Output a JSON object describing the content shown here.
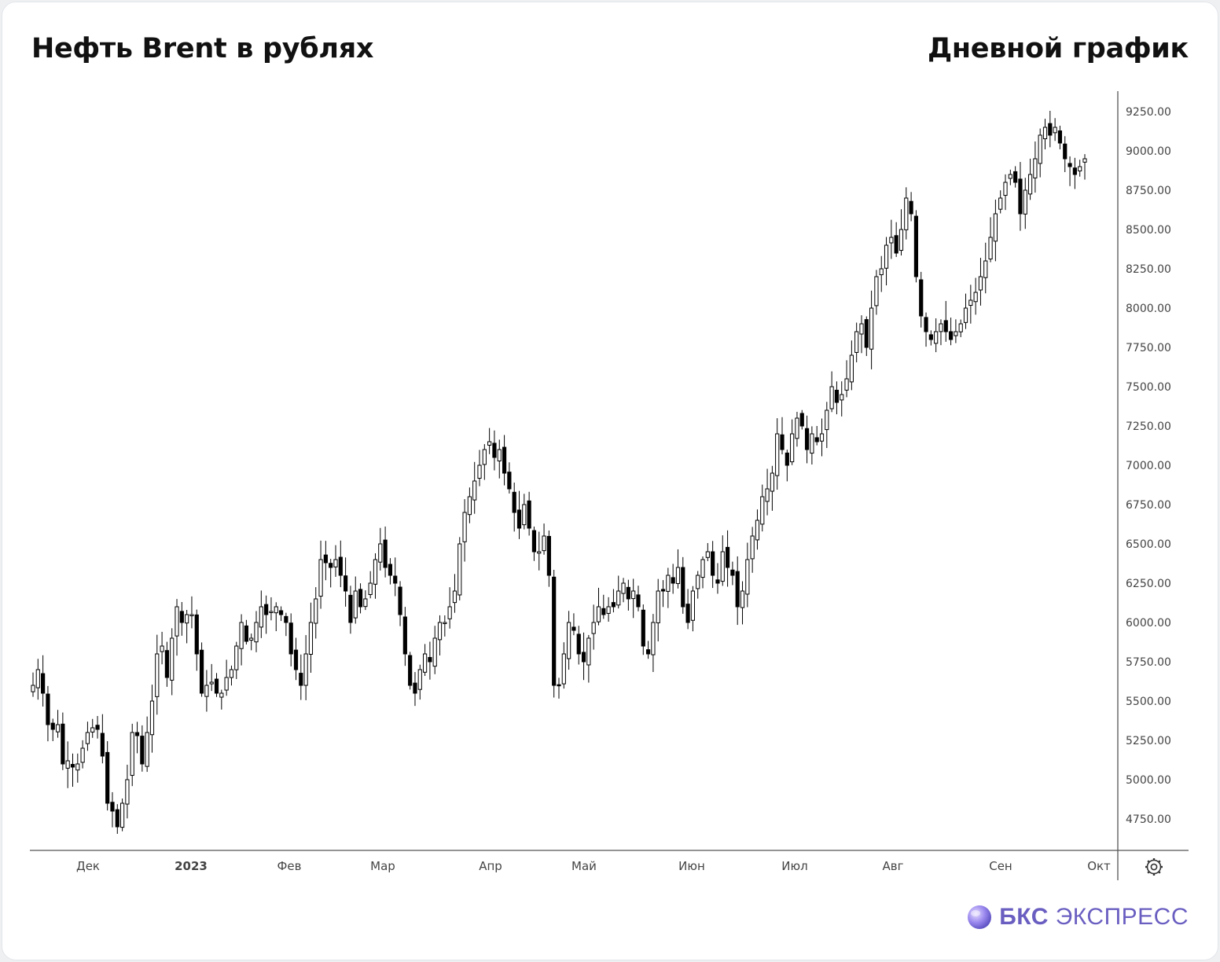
{
  "header": {
    "title": "Нефть Brent в рублях",
    "subtitle": "Дневной график"
  },
  "brand": {
    "name_bold": "БКС",
    "name_rest": " ЭКСПРЕСС",
    "logo_icon": "bks-logo-icon",
    "color": "#6a5fc1"
  },
  "settings_icon": "gear-icon",
  "chart_data": {
    "type": "candlestick",
    "title": "Нефть Brent в рублях",
    "subtitle": "Дневной график",
    "y_axis": {
      "position": "right",
      "min": 4650,
      "max": 9350,
      "ticks": [
        "4750.00",
        "5000.00",
        "5250.00",
        "5500.00",
        "5750.00",
        "6000.00",
        "6250.00",
        "6500.00",
        "6750.00",
        "7000.00",
        "7250.00",
        "7500.00",
        "7750.00",
        "8000.00",
        "8250.00",
        "8500.00",
        "8750.00",
        "9000.00",
        "9250.00"
      ]
    },
    "x_axis": {
      "labels": [
        "Дек",
        "2023",
        "Фев",
        "Мар",
        "Апр",
        "Май",
        "Июн",
        "Июл",
        "Авг",
        "Сен",
        "Окт"
      ]
    },
    "grid": false,
    "candle_colors": {
      "up": "#ffffff",
      "down": "#000000",
      "outline": "#000000"
    },
    "closes": [
      5600,
      5700,
      5550,
      5350,
      5320,
      5350,
      5100,
      5120,
      5080,
      5100,
      5200,
      5300,
      5330,
      5320,
      5150,
      4850,
      4800,
      4700,
      4850,
      5000,
      5300,
      5280,
      5100,
      5300,
      5500,
      5800,
      5850,
      5650,
      5900,
      6100,
      6000,
      6050,
      6050,
      5800,
      5550,
      5600,
      5620,
      5550,
      5550,
      5650,
      5700,
      5850,
      6000,
      5880,
      5900,
      6000,
      6100,
      6050,
      6070,
      6100,
      6050,
      6000,
      5800,
      5700,
      5600,
      5800,
      6000,
      6150,
      6400,
      6380,
      6350,
      6400,
      6300,
      6200,
      6000,
      6200,
      6100,
      6150,
      6250,
      6400,
      6500,
      6350,
      6300,
      6250,
      6050,
      5800,
      5600,
      5550,
      5700,
      5800,
      5750,
      5900,
      6000,
      6000,
      6100,
      6200,
      6500,
      6700,
      6800,
      6900,
      7000,
      7100,
      7150,
      7050,
      7100,
      6950,
      6850,
      6700,
      6600,
      6750,
      6600,
      6450,
      6450,
      6550,
      6300,
      5600,
      5600,
      5800,
      6000,
      5950,
      5800,
      5750,
      5900,
      6000,
      6100,
      6050,
      6100,
      6100,
      6200,
      6250,
      6150,
      6200,
      6100,
      5850,
      5800,
      6000,
      6200,
      6200,
      6300,
      6250,
      6350,
      6100,
      6000,
      6200,
      6300,
      6400,
      6450,
      6300,
      6250,
      6450,
      6350,
      6300,
      6100,
      6200,
      6400,
      6550,
      6650,
      6800,
      6850,
      6950,
      7200,
      7100,
      7000,
      7200,
      7300,
      7250,
      7100,
      7200,
      7150,
      7200,
      7350,
      7500,
      7400,
      7450,
      7550,
      7700,
      7850,
      7900,
      7750,
      8000,
      8200,
      8250,
      8400,
      8450,
      8350,
      8500,
      8700,
      8600,
      8200,
      7950,
      7850,
      7800,
      7850,
      7900,
      7850,
      7800,
      7850,
      7900,
      8000,
      8050,
      8100,
      8200,
      8300,
      8450,
      8600,
      8700,
      8800,
      8850,
      8800,
      8600,
      8750,
      8850,
      8950,
      9100,
      9150,
      9100,
      9150,
      9050,
      8950,
      8900,
      8850,
      8900,
      8950
    ],
    "series_note": ""
  }
}
